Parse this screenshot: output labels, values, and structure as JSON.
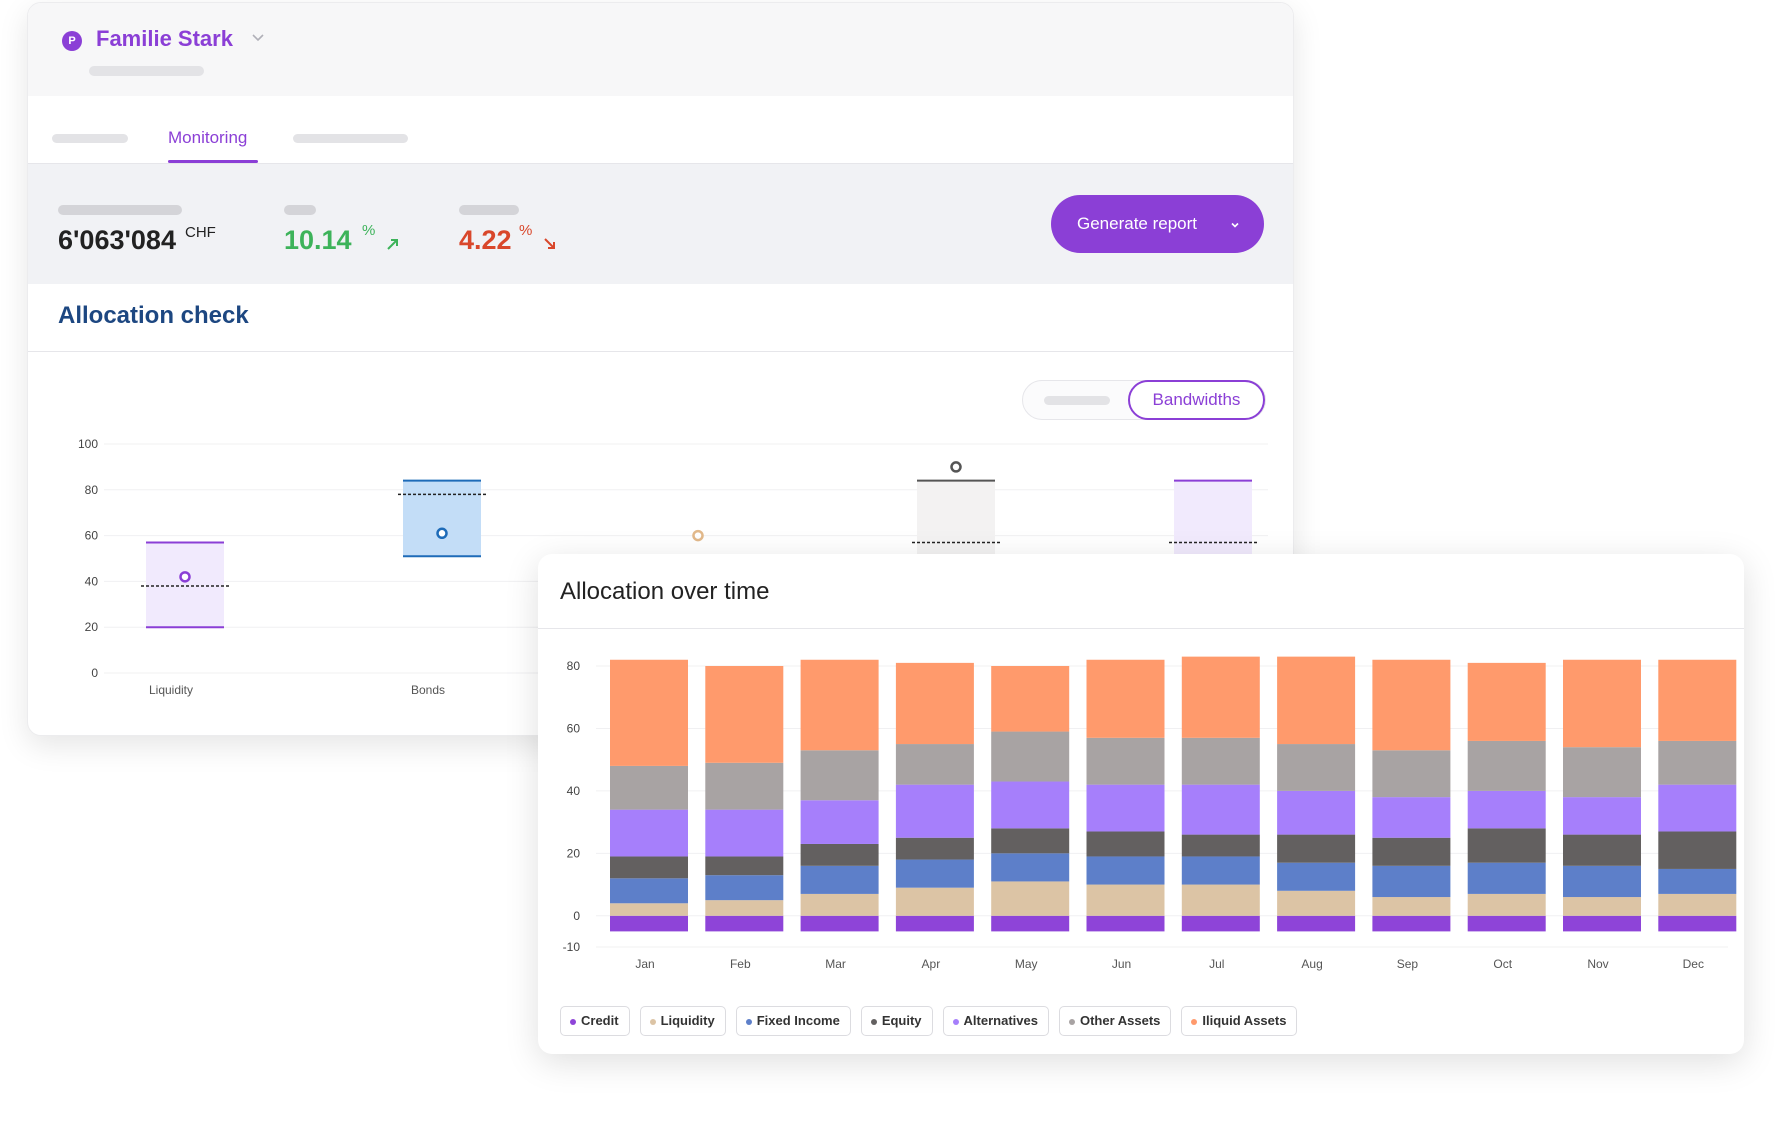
{
  "client": {
    "avatar_letter": "P",
    "name": "Familie Stark"
  },
  "tabs": {
    "active": "Monitoring"
  },
  "kpis": {
    "total_value": "6'063'084",
    "currency": "CHF",
    "gain": "10.14",
    "gain_unit": "%",
    "loss": "4.22",
    "loss_unit": "%"
  },
  "actions": {
    "generate_report": "Generate report"
  },
  "allocation_check": {
    "title": "Allocation check",
    "toggle_active": "Bandwidths",
    "chart_data": {
      "type": "bandwidth",
      "ylim": [
        0,
        100
      ],
      "yticks": [
        0,
        20,
        40,
        60,
        80,
        100
      ],
      "categories": [
        "Liquidity",
        "Bonds",
        "",
        "",
        ""
      ],
      "items": [
        {
          "label": "Liquidity",
          "min": 20,
          "max": 57,
          "target": 38,
          "actual": 42,
          "color": "#8b3fd6",
          "fill": "#f1eafd"
        },
        {
          "label": "Bonds",
          "min": 51,
          "max": 84,
          "target": 78,
          "actual": 61,
          "color": "#1e6bb8",
          "fill": "#c3ddf7"
        },
        {
          "label": "",
          "actual": 60,
          "color": "#e2b98b"
        },
        {
          "label": "",
          "max": 84,
          "target": 57,
          "actual": 90,
          "color": "#555555",
          "fill": "#f3f2f2"
        },
        {
          "label": "",
          "max": 84,
          "target": 57,
          "color": "#8b3fd6",
          "fill": "#f1eafd"
        }
      ]
    }
  },
  "allocation_over_time": {
    "title": "Allocation over time",
    "chart_data": {
      "type": "bar",
      "stacked": true,
      "ylim": [
        -10,
        80
      ],
      "yticks": [
        -10,
        0,
        20,
        40,
        60,
        80
      ],
      "categories": [
        "Jan",
        "Feb",
        "Mar",
        "Apr",
        "May",
        "Jun",
        "Jul",
        "Aug",
        "Sep",
        "Oct",
        "Nov",
        "Dec"
      ],
      "series": [
        {
          "name": "Credit",
          "color": "#8e44d8",
          "values": [
            -5,
            -5,
            -5,
            -5,
            -5,
            -5,
            -5,
            -5,
            -5,
            -5,
            -5,
            -5
          ]
        },
        {
          "name": "Liquidity",
          "color": "#dcc4a5",
          "values": [
            4,
            5,
            7,
            9,
            11,
            10,
            10,
            8,
            6,
            7,
            6,
            7
          ]
        },
        {
          "name": "Fixed Income",
          "color": "#5d7fc9",
          "values": [
            8,
            8,
            9,
            9,
            9,
            9,
            9,
            9,
            10,
            10,
            10,
            8
          ]
        },
        {
          "name": "Equity",
          "color": "#636060",
          "values": [
            7,
            6,
            7,
            7,
            8,
            8,
            7,
            9,
            9,
            11,
            10,
            12
          ]
        },
        {
          "name": "Alternatives",
          "color": "#a67ffb",
          "values": [
            15,
            15,
            14,
            17,
            15,
            15,
            16,
            14,
            13,
            12,
            12,
            15
          ]
        },
        {
          "name": "Other Assets",
          "color": "#a8a3a3",
          "values": [
            14,
            15,
            16,
            13,
            16,
            15,
            15,
            15,
            15,
            16,
            16,
            14
          ]
        },
        {
          "name": "Iliquid Assets",
          "color": "#ff9a6c",
          "values": [
            34,
            31,
            29,
            26,
            21,
            25,
            26,
            28,
            29,
            25,
            28,
            26
          ]
        }
      ],
      "legend": "bottom-left"
    }
  }
}
